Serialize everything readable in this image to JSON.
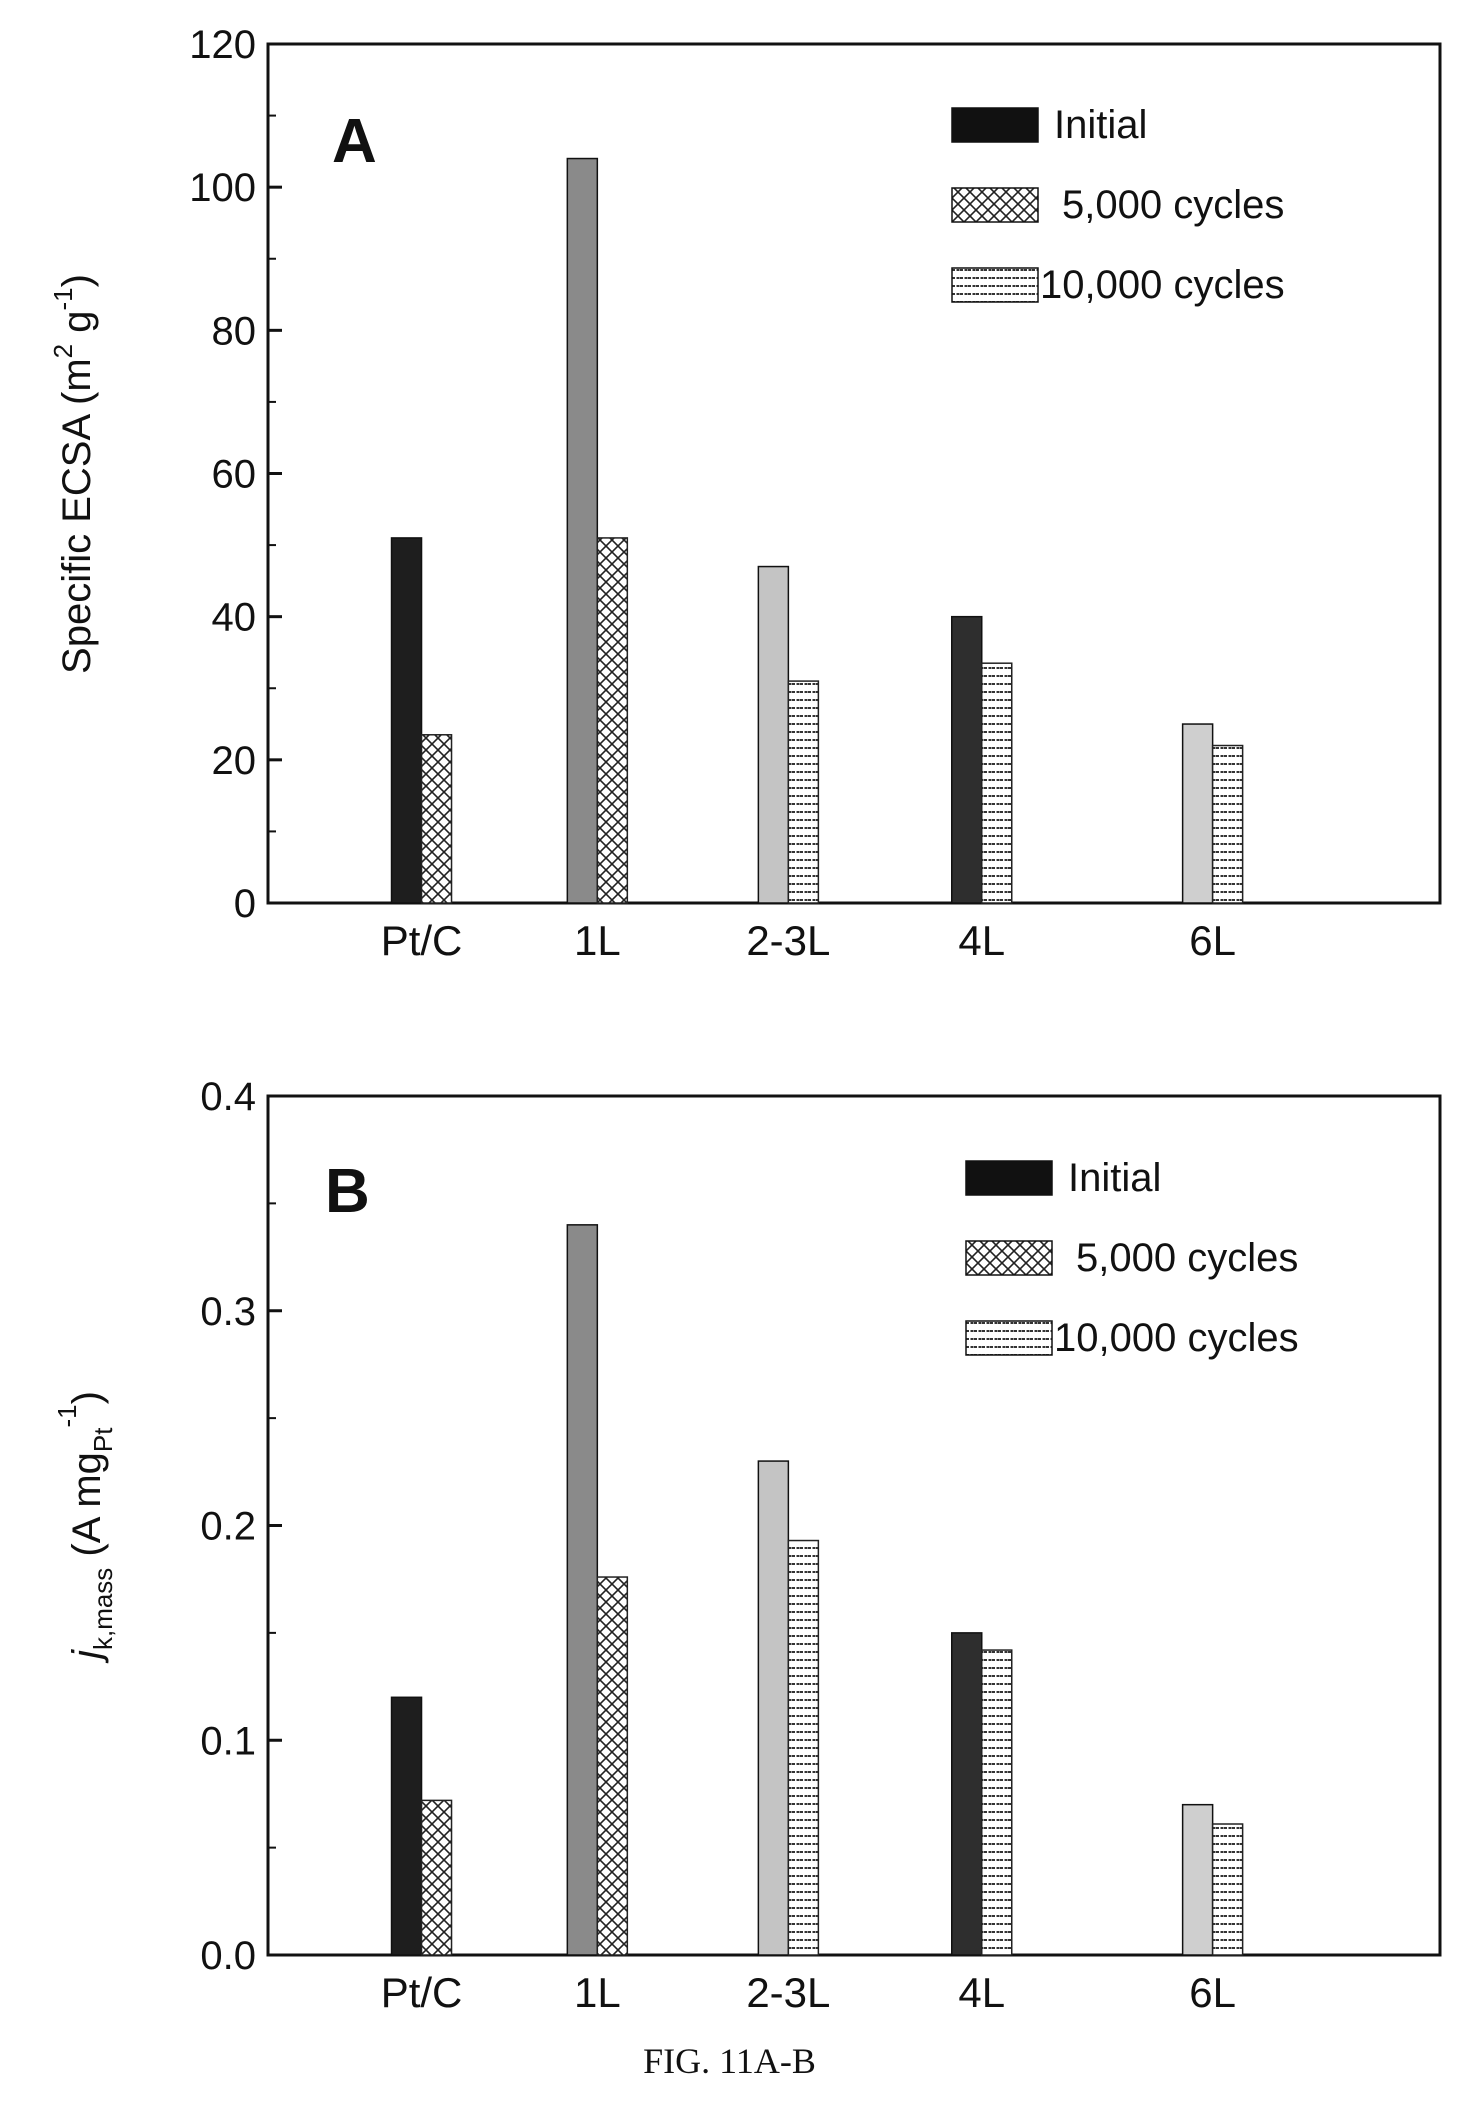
{
  "figure_caption": "FIG. 11A-B",
  "chart_data": [
    {
      "type": "bar",
      "panel_label": "A",
      "categories": [
        "Pt/C",
        "1L",
        "2-3L",
        "4L",
        "6L"
      ],
      "series": [
        {
          "name": "Initial",
          "values": [
            51,
            104,
            47,
            40,
            25
          ]
        },
        {
          "name": "5,000 cycles",
          "values": [
            23.5,
            51,
            null,
            null,
            null
          ]
        },
        {
          "name": "10,000 cycles",
          "values": [
            null,
            null,
            31,
            33.5,
            22
          ]
        }
      ],
      "initial_shades": [
        "#1e1e1e",
        "#8a8a8a",
        "#c4c4c4",
        "#2e2e2e",
        "#cfcfcf"
      ],
      "ylabel": "Specific ECSA (m² g⁻¹)",
      "ylabel_parts": {
        "main": "Specific ECSA (m",
        "sup1": "2",
        "mid": " g",
        "sup2": "-1",
        "end": ")"
      },
      "ylim": [
        0,
        120
      ],
      "yticks": [
        0,
        20,
        40,
        60,
        80,
        100,
        120
      ],
      "ytick_labels": [
        "0",
        "20",
        "40",
        "60",
        "80",
        "100",
        "120"
      ],
      "legend_position": "top-right",
      "grid": false
    },
    {
      "type": "bar",
      "panel_label": "B",
      "categories": [
        "Pt/C",
        "1L",
        "2-3L",
        "4L",
        "6L"
      ],
      "series": [
        {
          "name": "Initial",
          "values": [
            0.12,
            0.34,
            0.23,
            0.15,
            0.07
          ]
        },
        {
          "name": "5,000 cycles",
          "values": [
            0.072,
            0.176,
            null,
            null,
            null
          ]
        },
        {
          "name": "10,000 cycles",
          "values": [
            null,
            null,
            0.193,
            0.142,
            0.061
          ]
        }
      ],
      "initial_shades": [
        "#1e1e1e",
        "#8a8a8a",
        "#c4c4c4",
        "#2e2e2e",
        "#cfcfcf"
      ],
      "ylabel": "jk,mass (A mgPt⁻¹)",
      "ylabel_parts": {
        "j": "j",
        "sub": "k,mass",
        "paren": " (A mg",
        "sub2": "Pt",
        "sup": "-1",
        "end": ")"
      },
      "ylim": [
        0,
        0.4
      ],
      "yticks": [
        0,
        0.1,
        0.2,
        0.3,
        0.4
      ],
      "ytick_labels": [
        "0.0",
        "0.1",
        "0.2",
        "0.3",
        "0.4"
      ],
      "legend_position": "top-right",
      "grid": false
    }
  ]
}
